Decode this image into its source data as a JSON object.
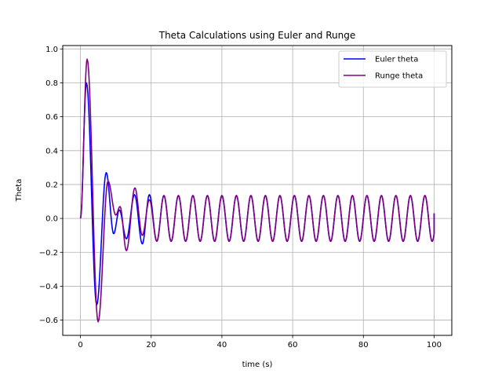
{
  "chart_data": {
    "type": "line",
    "title": "Theta Calculations using Euler and Runge",
    "xlabel": "time (s)",
    "ylabel": "Theta",
    "xlim": [
      -5,
      105
    ],
    "ylim": [
      -0.69,
      1.02
    ],
    "xticks": [
      0,
      20,
      40,
      60,
      80,
      100
    ],
    "xtick_labels": [
      "0",
      "20",
      "40",
      "60",
      "80",
      "100"
    ],
    "yticks": [
      -0.6,
      -0.4,
      -0.2,
      0.0,
      0.2,
      0.4,
      0.6,
      0.8,
      1.0
    ],
    "ytick_labels": [
      "−0.6",
      "−0.4",
      "−0.2",
      "0.0",
      "0.2",
      "0.4",
      "0.6",
      "0.8",
      "1.0"
    ],
    "grid": true,
    "legend_position": "top-right",
    "steady_state": {
      "amplitude": 0.135,
      "period": 4.1
    },
    "series": [
      {
        "name": "Euler theta",
        "color": "#0000ff",
        "keypoints": [
          [
            0,
            0.0
          ],
          [
            1.7,
            0.8
          ],
          [
            4.6,
            -0.51
          ],
          [
            7.3,
            0.27
          ],
          [
            9.4,
            -0.09
          ],
          [
            11.0,
            0.05
          ],
          [
            13.0,
            -0.12
          ],
          [
            15.3,
            0.14
          ],
          [
            17.5,
            -0.15
          ],
          [
            19.5,
            0.14
          ],
          [
            21.6,
            -0.135
          ],
          [
            23.6,
            0.135
          ]
        ],
        "end": [
          100,
          0.03
        ]
      },
      {
        "name": "Runge theta",
        "color": "#800080",
        "keypoints": [
          [
            0,
            0.0
          ],
          [
            1.9,
            0.94
          ],
          [
            5.0,
            -0.61
          ],
          [
            7.8,
            0.22
          ],
          [
            10.0,
            0.02
          ],
          [
            11.2,
            0.07
          ],
          [
            13.0,
            -0.19
          ],
          [
            15.4,
            0.18
          ],
          [
            17.5,
            -0.1
          ],
          [
            19.5,
            0.11
          ],
          [
            21.6,
            -0.135
          ],
          [
            23.6,
            0.135
          ]
        ],
        "end": [
          100,
          0.03
        ]
      }
    ]
  }
}
